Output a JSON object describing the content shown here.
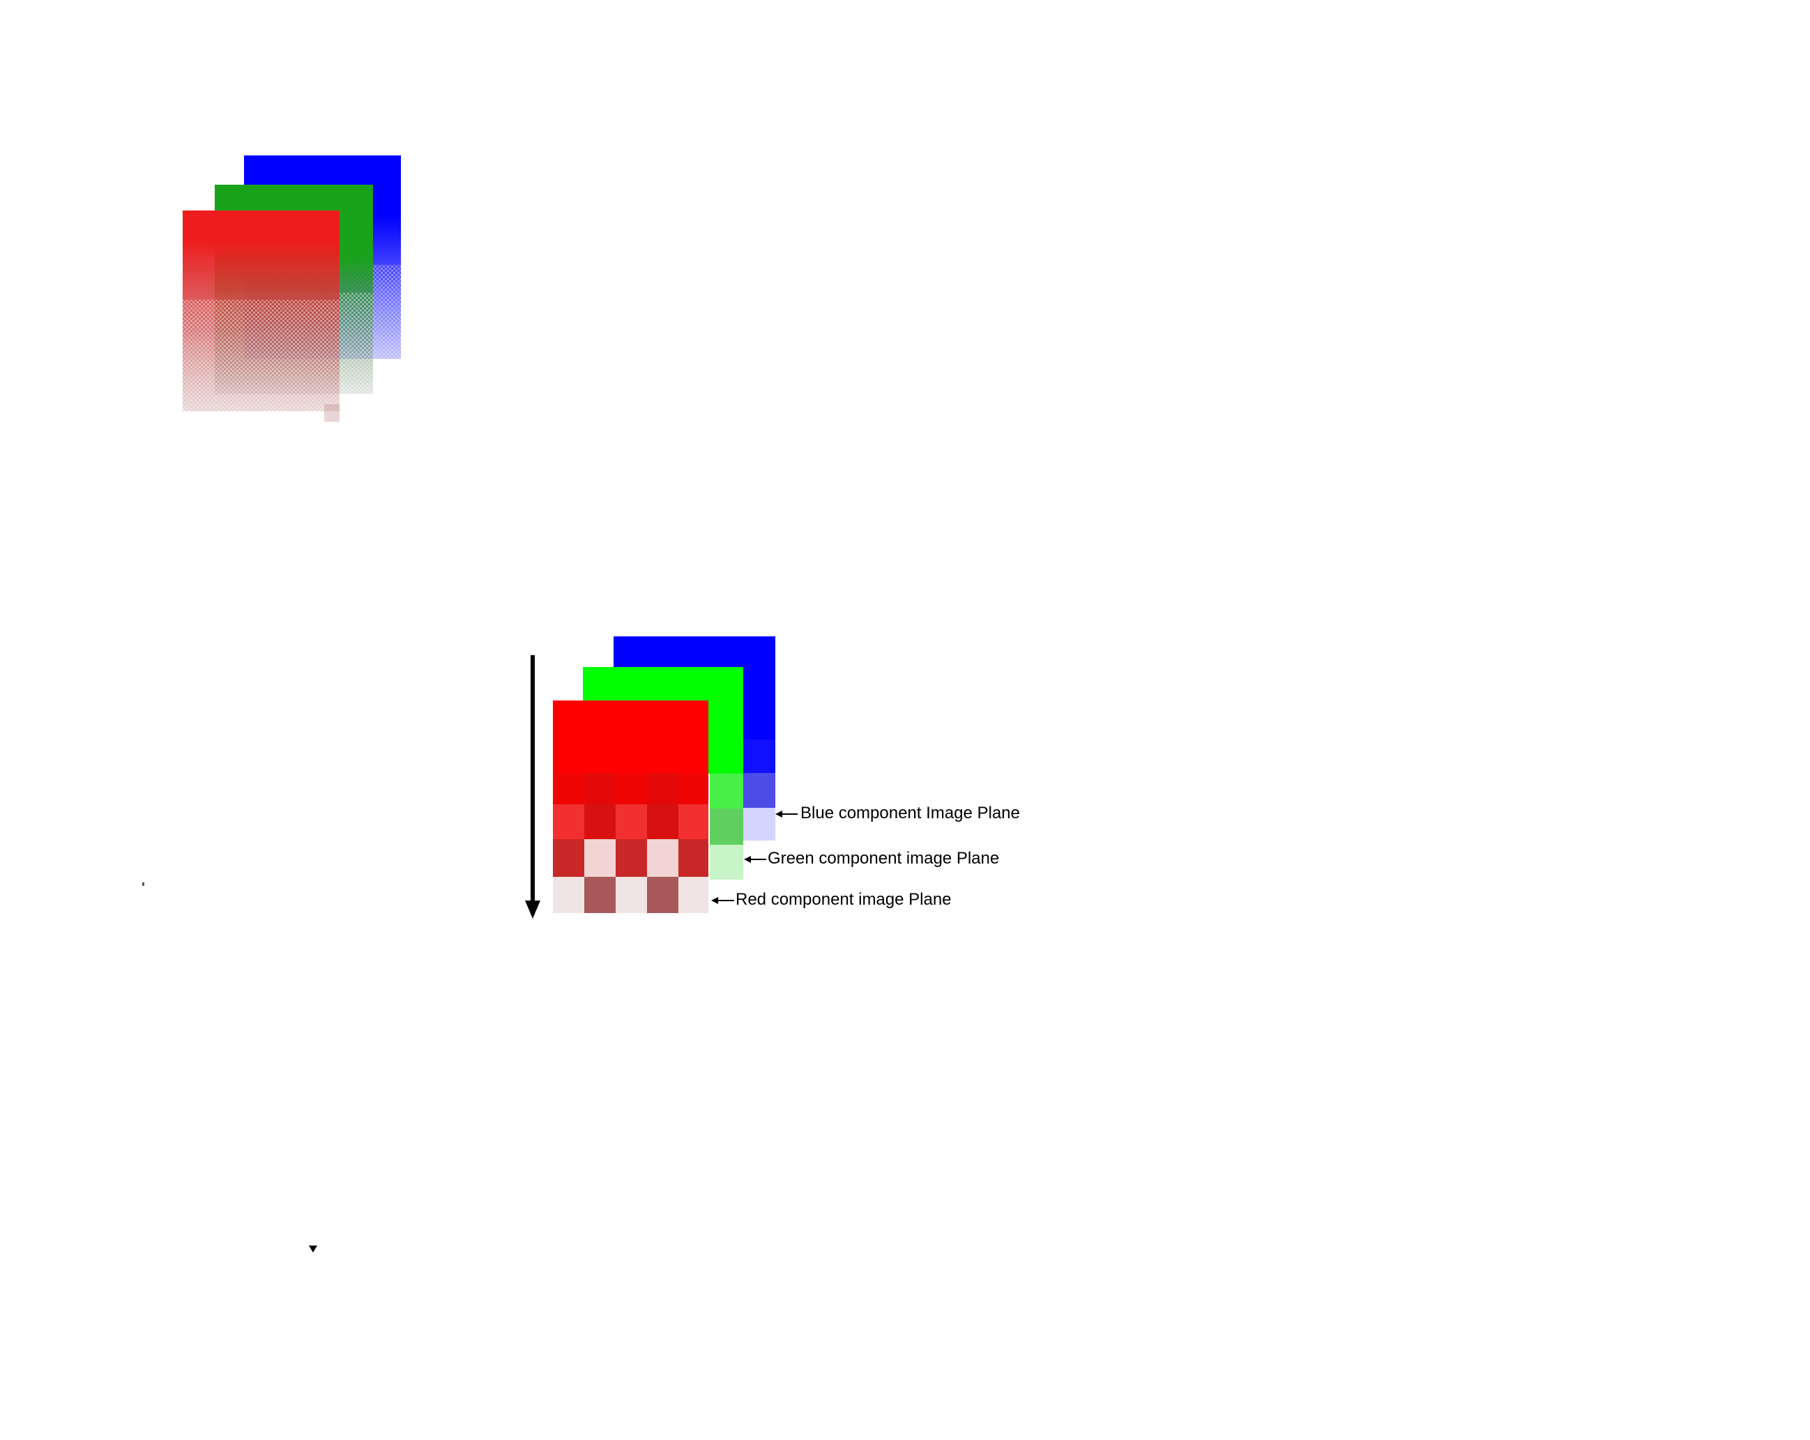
{
  "colors": {
    "red": "#ff0000",
    "green": "#00ff00",
    "dark_green": "#1aa31a",
    "blue": "#0000ff",
    "arrow": "#000000"
  },
  "planes": {
    "blue_label": "Blue component Image  Plane",
    "green_label": "Green component image Plane",
    "red_label": "Red component image Plane"
  },
  "icons": {
    "down_arrow": "down-arrow-icon",
    "pointer_arrow": "left-arrow-icon"
  }
}
